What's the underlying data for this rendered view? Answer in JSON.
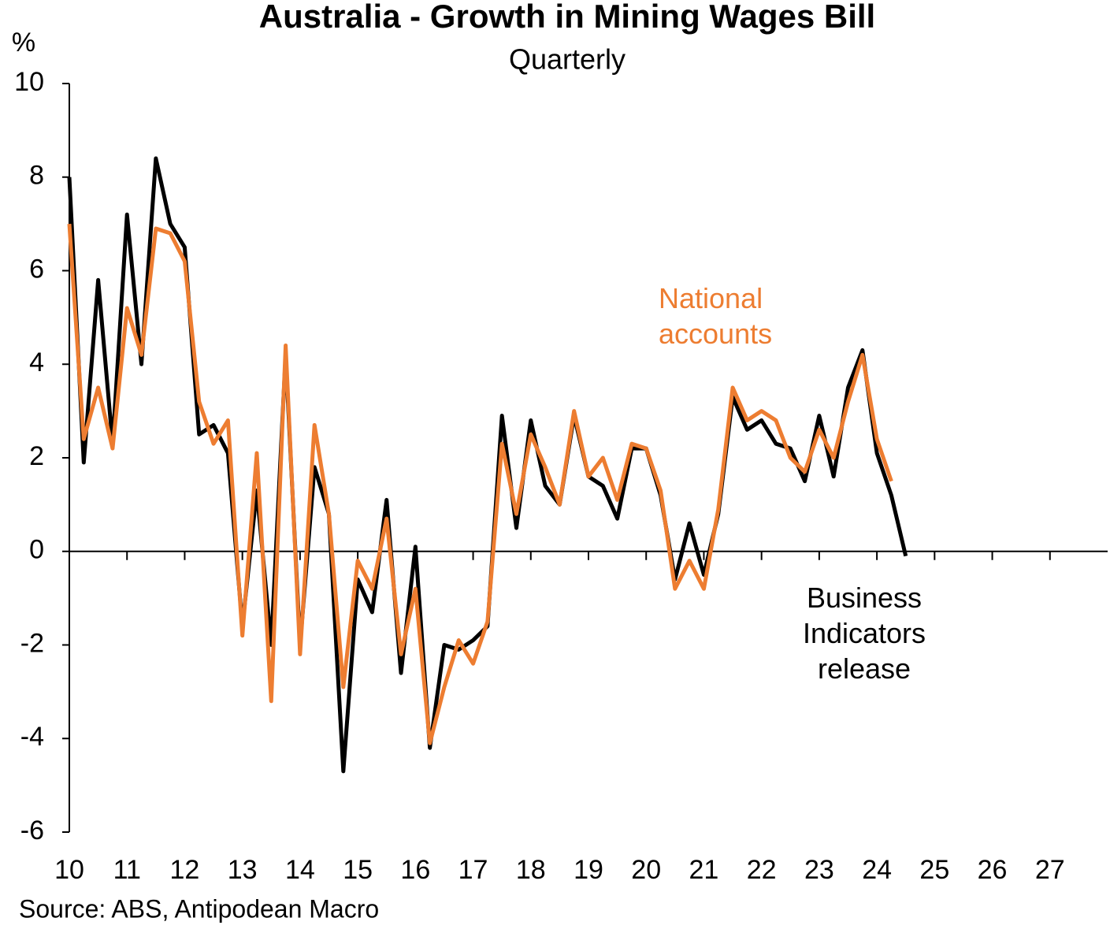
{
  "chart_data": {
    "type": "line",
    "title": "Australia - Growth in Mining Wages Bill",
    "subtitle": "Quarterly",
    "y_label": "%",
    "source": "Source: ABS, Antipodean Macro",
    "x": [
      2010,
      2010.25,
      2010.5,
      2010.75,
      2011,
      2011.25,
      2011.5,
      2011.75,
      2012,
      2012.25,
      2012.5,
      2012.75,
      2013,
      2013.25,
      2013.5,
      2013.75,
      2014,
      2014.25,
      2014.5,
      2014.75,
      2015,
      2015.25,
      2015.5,
      2015.75,
      2016,
      2016.25,
      2016.5,
      2016.75,
      2017,
      2017.25,
      2017.5,
      2017.75,
      2018,
      2018.25,
      2018.5,
      2018.75,
      2019,
      2019.25,
      2019.5,
      2019.75,
      2020,
      2020.25,
      2020.5,
      2020.75,
      2021,
      2021.25,
      2021.5,
      2021.75,
      2022,
      2022.25,
      2022.5,
      2022.75,
      2023,
      2023.25,
      2023.5,
      2023.75,
      2024,
      2024.25,
      2024.5
    ],
    "series": [
      {
        "name": "Business Indicators release",
        "color": "#000000",
        "values": [
          8.0,
          1.9,
          5.8,
          2.3,
          7.2,
          4.0,
          8.4,
          7.0,
          6.5,
          2.5,
          2.7,
          2.1,
          -1.6,
          1.3,
          -2.0,
          4.2,
          -2.0,
          1.8,
          0.8,
          -4.7,
          -0.6,
          -1.3,
          1.1,
          -2.6,
          0.1,
          -4.2,
          -2.0,
          -2.1,
          -1.9,
          -1.6,
          2.9,
          0.5,
          2.8,
          1.4,
          1.0,
          2.9,
          1.6,
          1.4,
          0.7,
          2.2,
          2.2,
          1.2,
          -0.6,
          0.6,
          -0.5,
          0.8,
          3.3,
          2.6,
          2.8,
          2.3,
          2.2,
          1.5,
          2.9,
          1.6,
          3.5,
          4.3,
          2.1,
          1.2,
          -0.1
        ]
      },
      {
        "name": "National accounts",
        "color": "#ED7D31",
        "values": [
          7.0,
          2.4,
          3.5,
          2.2,
          5.2,
          4.2,
          6.9,
          6.8,
          6.2,
          3.2,
          2.3,
          2.8,
          -1.8,
          2.1,
          -3.2,
          4.4,
          -2.2,
          2.7,
          0.8,
          -2.9,
          -0.2,
          -0.8,
          0.7,
          -2.2,
          -0.8,
          -4.1,
          -2.9,
          -1.9,
          -2.4,
          -1.5,
          2.3,
          0.8,
          2.5,
          1.8,
          1.0,
          3.0,
          1.6,
          2.0,
          1.1,
          2.3,
          2.2,
          1.3,
          -0.8,
          -0.2,
          -0.8,
          0.9,
          3.5,
          2.8,
          3.0,
          2.8,
          2.0,
          1.7,
          2.6,
          2.0,
          3.2,
          4.2,
          2.4,
          1.5,
          null
        ]
      }
    ],
    "xlim": [
      2010,
      2028
    ],
    "xticks": [
      {
        "value": 2010,
        "label": "10"
      },
      {
        "value": 2011,
        "label": "11"
      },
      {
        "value": 2012,
        "label": "12"
      },
      {
        "value": 2013,
        "label": "13"
      },
      {
        "value": 2014,
        "label": "14"
      },
      {
        "value": 2015,
        "label": "15"
      },
      {
        "value": 2016,
        "label": "16"
      },
      {
        "value": 2017,
        "label": "17"
      },
      {
        "value": 2018,
        "label": "18"
      },
      {
        "value": 2019,
        "label": "19"
      },
      {
        "value": 2020,
        "label": "20"
      },
      {
        "value": 2021,
        "label": "21"
      },
      {
        "value": 2022,
        "label": "22"
      },
      {
        "value": 2023,
        "label": "23"
      },
      {
        "value": 2024,
        "label": "24"
      },
      {
        "value": 2025,
        "label": "25"
      },
      {
        "value": 2026,
        "label": "26"
      },
      {
        "value": 2027,
        "label": "27"
      }
    ],
    "ylim": [
      -6,
      10
    ],
    "yticks": [
      -6,
      -4,
      -2,
      0,
      2,
      4,
      6,
      8,
      10
    ],
    "grid": false
  }
}
